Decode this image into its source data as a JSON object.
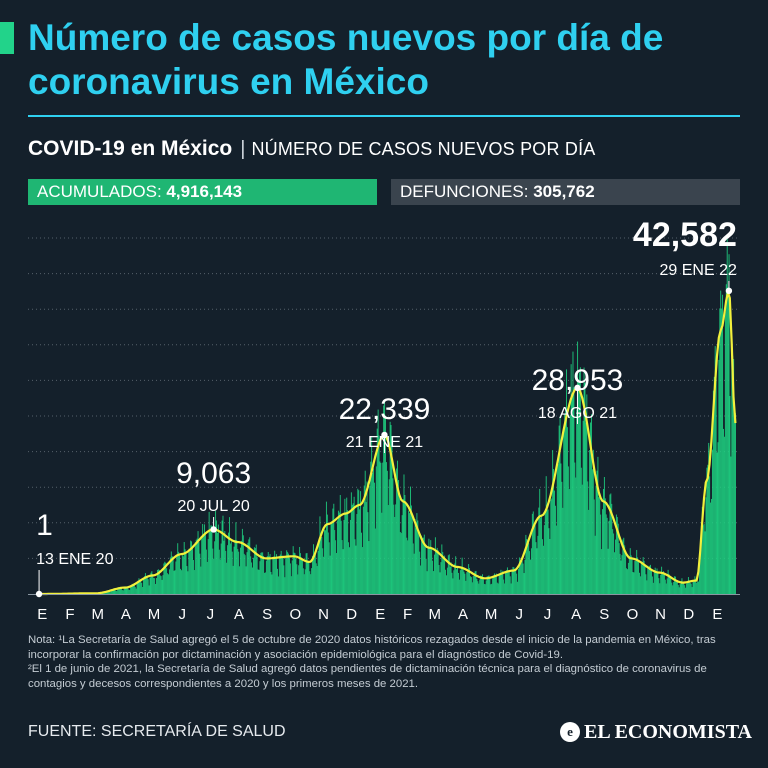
{
  "header": {
    "title": "Número de casos nuevos por día de coronavirus en México"
  },
  "subtitle": {
    "strong": "COVID-19 en México",
    "separator": "|",
    "light": "NÚMERO DE CASOS NUEVOS POR DÍA"
  },
  "stats": {
    "acumulados_label": "ACUMULADOS:",
    "acumulados_value": "4,916,143",
    "defunciones_label": "DEFUNCIONES:",
    "defunciones_value": "305,762"
  },
  "colors": {
    "title": "#2fd0f0",
    "bars": "#1ed683",
    "trend_line": "#f2f03c",
    "acumulados_box": "#1fb673",
    "defunciones_box": "#3a444e"
  },
  "chart_data": {
    "type": "bar",
    "title": "Número de casos nuevos por día",
    "xlabel": "",
    "ylabel": "",
    "ylim": [
      0,
      50000
    ],
    "grid": true,
    "x_tick_labels": [
      "E",
      "F",
      "M",
      "A",
      "M",
      "J",
      "J",
      "A",
      "S",
      "O",
      "N",
      "D",
      "E",
      "F",
      "M",
      "A",
      "M",
      "J",
      "J",
      "A",
      "S",
      "O",
      "N",
      "D",
      "E"
    ],
    "trend_points": [
      {
        "date": "2020-01-13",
        "value": 1
      },
      {
        "date": "2020-03-15",
        "value": 100
      },
      {
        "date": "2020-04-15",
        "value": 900
      },
      {
        "date": "2020-05-15",
        "value": 2600
      },
      {
        "date": "2020-06-15",
        "value": 5600
      },
      {
        "date": "2020-07-20",
        "value": 9063
      },
      {
        "date": "2020-08-15",
        "value": 7300
      },
      {
        "date": "2020-09-15",
        "value": 5000
      },
      {
        "date": "2020-10-15",
        "value": 5300
      },
      {
        "date": "2020-11-01",
        "value": 4500
      },
      {
        "date": "2020-11-20",
        "value": 9800
      },
      {
        "date": "2020-12-10",
        "value": 11300
      },
      {
        "date": "2020-12-25",
        "value": 12500
      },
      {
        "date": "2021-01-21",
        "value": 22339
      },
      {
        "date": "2021-02-10",
        "value": 13000
      },
      {
        "date": "2021-03-10",
        "value": 6500
      },
      {
        "date": "2021-04-10",
        "value": 3800
      },
      {
        "date": "2021-05-10",
        "value": 2200
      },
      {
        "date": "2021-06-10",
        "value": 3300
      },
      {
        "date": "2021-07-10",
        "value": 11000
      },
      {
        "date": "2021-08-18",
        "value": 28953
      },
      {
        "date": "2021-09-15",
        "value": 13000
      },
      {
        "date": "2021-10-15",
        "value": 5000
      },
      {
        "date": "2021-11-15",
        "value": 3000
      },
      {
        "date": "2021-12-10",
        "value": 1600
      },
      {
        "date": "2021-12-25",
        "value": 1900
      },
      {
        "date": "2022-01-05",
        "value": 16000
      },
      {
        "date": "2022-01-20",
        "value": 37000
      },
      {
        "date": "2022-01-29",
        "value": 42582
      },
      {
        "date": "2022-02-05",
        "value": 24000
      }
    ],
    "annotations": [
      {
        "value_label": "1",
        "date_label": "13 ENE 20",
        "date": "2020-01-13",
        "value": 1
      },
      {
        "value_label": "9,063",
        "date_label": "20 JUL 20",
        "date": "2020-07-20",
        "value": 9063
      },
      {
        "value_label": "22,339",
        "date_label": "21 ENE 21",
        "date": "2021-01-21",
        "value": 22339
      },
      {
        "value_label": "28,953",
        "date_label": "18 AGO 21",
        "date": "2021-08-18",
        "value": 28953
      },
      {
        "value_label": "42,582",
        "date_label": "29 ENE 22",
        "date": "2022-01-29",
        "value": 42582
      }
    ]
  },
  "notes": {
    "note1": "Nota: ¹La Secretaría de Salud agregó el 5 de octubre de 2020 datos históricos rezagados desde el inicio de la pandemia en México, tras incorporar la confirmación por dictaminación y asociación epidemiológica para el diagnóstico de Covid-19.",
    "note2": "²El 1 de junio de 2021, la Secretaría de Salud agregó datos pendientes de dictaminación técnica para el diagnóstico de coronavirus de contagios y decesos correspondientes a 2020 y los primeros meses de 2021."
  },
  "footer": {
    "source": "FUENTE: SECRETARÍA DE SALUD",
    "logo_text": "EL ECONOMISTA",
    "logo_mark": "e"
  }
}
